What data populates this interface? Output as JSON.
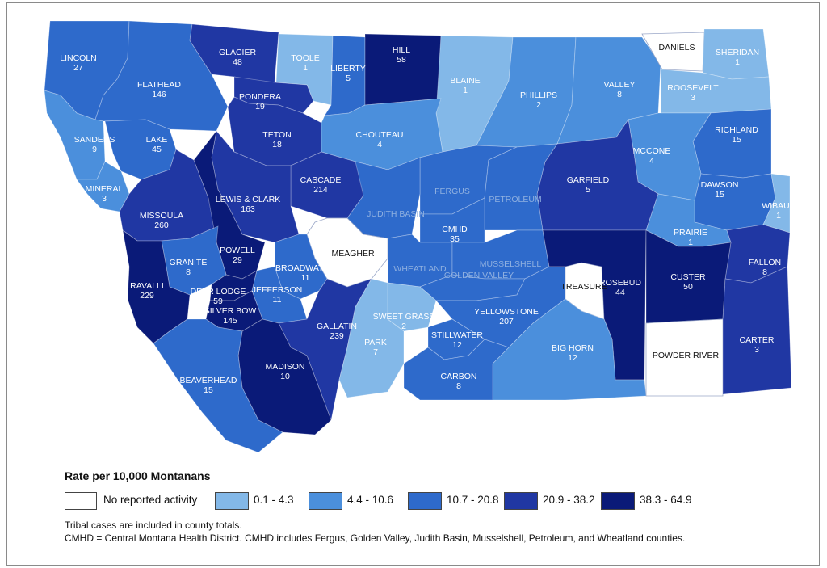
{
  "counties": [
    {
      "name": "LINCOLN",
      "value": "27",
      "cls": "c3"
    },
    {
      "name": "FLATHEAD",
      "value": "146",
      "cls": "c3"
    },
    {
      "name": "GLACIER",
      "value": "48",
      "cls": "c4"
    },
    {
      "name": "TOOLE",
      "value": "1",
      "cls": "c1"
    },
    {
      "name": "LIBERTY",
      "value": "5",
      "cls": "c3"
    },
    {
      "name": "HILL",
      "value": "58",
      "cls": "c5"
    },
    {
      "name": "BLAINE",
      "value": "1",
      "cls": "c1"
    },
    {
      "name": "PHILLIPS",
      "value": "2",
      "cls": "c2"
    },
    {
      "name": "VALLEY",
      "value": "8",
      "cls": "c2"
    },
    {
      "name": "DANIELS",
      "value": "",
      "cls": "c0"
    },
    {
      "name": "SHERIDAN",
      "value": "1",
      "cls": "c1"
    },
    {
      "name": "ROOSEVELT",
      "value": "3",
      "cls": "c1"
    },
    {
      "name": "PONDERA",
      "value": "19",
      "cls": "c4"
    },
    {
      "name": "TETON",
      "value": "18",
      "cls": "c4"
    },
    {
      "name": "SANDERS",
      "value": "9",
      "cls": "c2"
    },
    {
      "name": "LAKE",
      "value": "45",
      "cls": "c3"
    },
    {
      "name": "CHOUTEAU",
      "value": "4",
      "cls": "c2"
    },
    {
      "name": "RICHLAND",
      "value": "15",
      "cls": "c3"
    },
    {
      "name": "MCCONE",
      "value": "4",
      "cls": "c2"
    },
    {
      "name": "GARFIELD",
      "value": "5",
      "cls": "c4"
    },
    {
      "name": "CASCADE",
      "value": "214",
      "cls": "c4"
    },
    {
      "name": "LEWIS & CLARK",
      "value": "163",
      "cls": "c4"
    },
    {
      "name": "MINERAL",
      "value": "3",
      "cls": "c2"
    },
    {
      "name": "MISSOULA",
      "value": "260",
      "cls": "c4"
    },
    {
      "name": "DAWSON",
      "value": "15",
      "cls": "c3"
    },
    {
      "name": "WIBAUX",
      "value": "1",
      "cls": "c1"
    },
    {
      "name": "FERGUS",
      "value": "",
      "cls": "c3"
    },
    {
      "name": "PETROLEUM",
      "value": "",
      "cls": "c3"
    },
    {
      "name": "JUDITH BASIN",
      "value": "",
      "cls": "c3"
    },
    {
      "name": "CMHD",
      "value": "35",
      "cls": "c3"
    },
    {
      "name": "MEAGHER",
      "value": "",
      "cls": "c0"
    },
    {
      "name": "POWELL",
      "value": "29",
      "cls": "c5"
    },
    {
      "name": "GRANITE",
      "value": "8",
      "cls": "c3"
    },
    {
      "name": "PRAIRIE",
      "value": "1",
      "cls": "c2"
    },
    {
      "name": "FALLON",
      "value": "8",
      "cls": "c4"
    },
    {
      "name": "BROADWATER",
      "value": "11",
      "cls": "c3"
    },
    {
      "name": "WHEATLAND",
      "value": "",
      "cls": "c3"
    },
    {
      "name": "MUSSELSHELL",
      "value": "",
      "cls": "c3"
    },
    {
      "name": "GOLDEN VALLEY",
      "value": "",
      "cls": "c3"
    },
    {
      "name": "RAVALLI",
      "value": "229",
      "cls": "c5"
    },
    {
      "name": "DEER LODGE",
      "value": "59",
      "cls": "c5"
    },
    {
      "name": "JEFFERSON",
      "value": "11",
      "cls": "c3"
    },
    {
      "name": "TREASURE",
      "value": "",
      "cls": "c0"
    },
    {
      "name": "ROSEBUD",
      "value": "44",
      "cls": "c5"
    },
    {
      "name": "CUSTER",
      "value": "50",
      "cls": "c5"
    },
    {
      "name": "SILVER BOW",
      "value": "145",
      "cls": "c5"
    },
    {
      "name": "SWEET GRASS",
      "value": "2",
      "cls": "c1"
    },
    {
      "name": "YELLOWSTONE",
      "value": "207",
      "cls": "c3"
    },
    {
      "name": "GALLATIN",
      "value": "239",
      "cls": "c4"
    },
    {
      "name": "STILLWATER",
      "value": "12",
      "cls": "c3"
    },
    {
      "name": "PARK",
      "value": "7",
      "cls": "c1"
    },
    {
      "name": "BIG HORN",
      "value": "12",
      "cls": "c2"
    },
    {
      "name": "MADISON",
      "value": "10",
      "cls": "c5"
    },
    {
      "name": "POWDER RIVER",
      "value": "",
      "cls": "c0"
    },
    {
      "name": "CARTER",
      "value": "3",
      "cls": "c4"
    },
    {
      "name": "BEAVERHEAD",
      "value": "15",
      "cls": "c3"
    },
    {
      "name": "CARBON",
      "value": "8",
      "cls": "c3"
    }
  ],
  "classes": {
    "c0": "#ffffff",
    "c1": "#83b8e8",
    "c2": "#4b8fdc",
    "c3": "#2e6acb",
    "c4": "#2037a3",
    "c5": "#0a1a78"
  },
  "legend": {
    "title": "Rate per 10,000 Montanans",
    "items": [
      {
        "label": "No reported activity",
        "color": "#ffffff"
      },
      {
        "label": "0.1 - 4.3",
        "color": "#83b8e8"
      },
      {
        "label": "4.4 - 10.6",
        "color": "#4b8fdc"
      },
      {
        "label": "10.7 - 20.8",
        "color": "#2e6acb"
      },
      {
        "label": "20.9 - 38.2",
        "color": "#2037a3"
      },
      {
        "label": "38.3 - 64.9",
        "color": "#0a1a78"
      }
    ]
  },
  "notes": [
    "Tribal cases are included in county totals.",
    "CMHD = Central Montana Health District. CMHD includes Fergus, Golden Valley, Judith Basin, Musselshell, Petroleum, and Wheatland counties."
  ]
}
